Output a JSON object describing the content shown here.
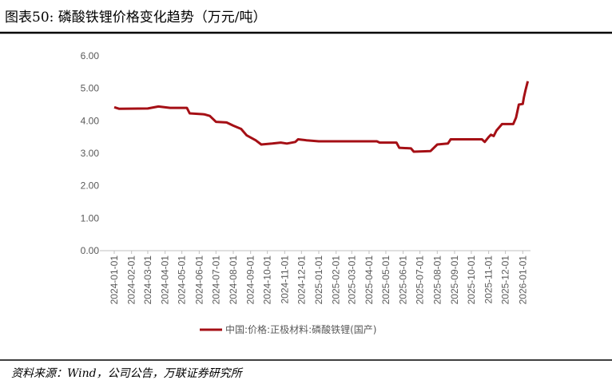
{
  "chart_data": {
    "type": "line",
    "title": "图表50:  磷酸铁锂价格变化趋势（万元/吨）",
    "x": [
      "2024-01-01",
      "2024-01-10",
      "2024-03-01",
      "2024-03-20",
      "2024-04-10",
      "2024-05-10",
      "2024-05-15",
      "2024-06-10",
      "2024-06-20",
      "2024-07-01",
      "2024-07-20",
      "2024-08-01",
      "2024-08-15",
      "2024-08-25",
      "2024-09-10",
      "2024-09-20",
      "2024-10-10",
      "2024-10-25",
      "2024-11-05",
      "2024-11-20",
      "2024-11-25",
      "2024-12-10",
      "2025-01-01",
      "2025-04-15",
      "2025-04-20",
      "2025-05-20",
      "2025-05-25",
      "2025-06-15",
      "2025-06-20",
      "2025-07-20",
      "2025-08-01",
      "2025-08-20",
      "2025-08-25",
      "2025-10-20",
      "2025-10-25",
      "2025-11-01",
      "2025-11-05",
      "2025-11-10",
      "2025-11-15",
      "2025-11-25",
      "2025-12-15",
      "2025-12-20",
      "2025-12-25",
      "2026-01-01",
      "2026-01-03",
      "2026-01-06",
      "2026-01-10"
    ],
    "series": [
      {
        "name": "中国:价格:正极材料:磷酸铁锂(国产)",
        "color": "#a50f15",
        "values": [
          4.42,
          4.37,
          4.38,
          4.44,
          4.4,
          4.4,
          4.23,
          4.2,
          4.15,
          3.97,
          3.95,
          3.85,
          3.75,
          3.55,
          3.4,
          3.27,
          3.3,
          3.33,
          3.3,
          3.35,
          3.43,
          3.4,
          3.37,
          3.37,
          3.33,
          3.33,
          3.17,
          3.15,
          3.05,
          3.07,
          3.27,
          3.3,
          3.43,
          3.43,
          3.35,
          3.5,
          3.57,
          3.53,
          3.7,
          3.9,
          3.9,
          4.1,
          4.5,
          4.52,
          4.72,
          4.95,
          5.22
        ]
      }
    ],
    "xlim": [
      "2024-01-01",
      "2026-01-12"
    ],
    "xticks": [
      "2024-01-01",
      "2024-02-01",
      "2024-03-01",
      "2024-04-01",
      "2024-05-01",
      "2024-06-01",
      "2024-07-01",
      "2024-08-01",
      "2024-09-01",
      "2024-10-01",
      "2024-11-01",
      "2024-12-01",
      "2025-01-01",
      "2025-02-01",
      "2025-03-01",
      "2025-04-01",
      "2025-05-01",
      "2025-06-01",
      "2025-07-01",
      "2025-08-01",
      "2025-09-01",
      "2025-10-01",
      "2025-11-01",
      "2025-12-01",
      "2026-01-01"
    ],
    "ylim": [
      0,
      6
    ],
    "yticks": [
      {
        "value": 0,
        "label": "0.00"
      },
      {
        "value": 1,
        "label": "1.00"
      },
      {
        "value": 2,
        "label": "2.00"
      },
      {
        "value": 3,
        "label": "3.00"
      },
      {
        "value": 4,
        "label": "4.00"
      },
      {
        "value": 5,
        "label": "5.00"
      },
      {
        "value": 6,
        "label": "6.00"
      }
    ],
    "grid": false,
    "legend": "bottom"
  },
  "source": "资料来源：Wind，公司公告，万联证券研究所"
}
